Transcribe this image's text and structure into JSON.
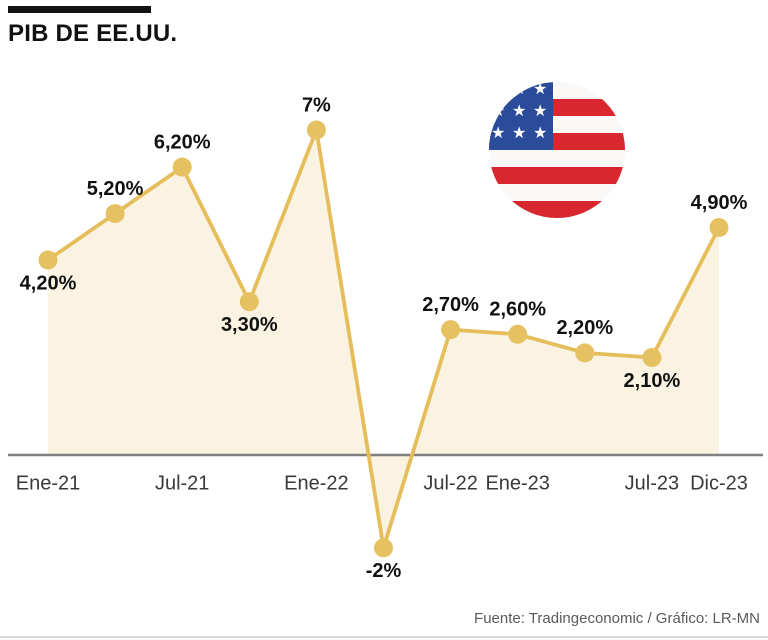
{
  "header": {
    "title": "PIB DE EE.UU."
  },
  "flag": {
    "name": "us-flag-icon",
    "star_glyph": "★",
    "colors": {
      "red": "#D8272F",
      "white": "#FAF9F7",
      "blue": "#2B4C9B"
    }
  },
  "footer": {
    "source": "Fuente: Tradingeconomic / Gráfico: LR-MN"
  },
  "chart_data": {
    "type": "line",
    "title": "PIB DE EE.UU.",
    "unit": "%",
    "decimal_style": "comma",
    "area_fill": true,
    "grid": false,
    "legend": false,
    "baseline_value": 0,
    "ylim": [
      -2.5,
      7.5
    ],
    "points": [
      {
        "label": "4,20%",
        "value": 4.2,
        "label_pos": "below"
      },
      {
        "label": "5,20%",
        "value": 5.2,
        "label_pos": "above"
      },
      {
        "label": "6,20%",
        "value": 6.2,
        "label_pos": "above"
      },
      {
        "label": "3,30%",
        "value": 3.3,
        "label_pos": "below"
      },
      {
        "label": "7%",
        "value": 7.0,
        "label_pos": "above"
      },
      {
        "label": "-2%",
        "value": -2.0,
        "label_pos": "below"
      },
      {
        "label": "2,70%",
        "value": 2.7,
        "label_pos": "above"
      },
      {
        "label": "2,60%",
        "value": 2.6,
        "label_pos": "above"
      },
      {
        "label": "2,20%",
        "value": 2.2,
        "label_pos": "above"
      },
      {
        "label": "2,10%",
        "value": 2.1,
        "label_pos": "below"
      },
      {
        "label": "4,90%",
        "value": 4.9,
        "label_pos": "above"
      }
    ],
    "x_ticks": [
      {
        "label": "Ene-21",
        "point_index": 0
      },
      {
        "label": "Jul-21",
        "point_index": 2
      },
      {
        "label": "Ene-22",
        "point_index": 4
      },
      {
        "label": "Jul-22",
        "point_index": 6
      },
      {
        "label": "Ene-23",
        "point_index": 7
      },
      {
        "label": "Jul-23",
        "point_index": 9
      },
      {
        "label": "Dic-23",
        "point_index": 10
      }
    ],
    "colors": {
      "line": "#E5BE5B",
      "marker": "#E6C161",
      "area": "#FBF3E1",
      "axis": "#7F7F7F",
      "data_label": "#111111",
      "tick_label": "#3A3A3A"
    }
  }
}
